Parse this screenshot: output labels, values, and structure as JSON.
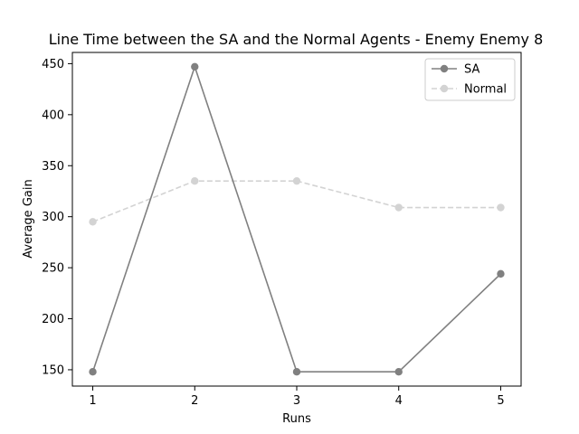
{
  "chart_data": {
    "type": "line",
    "title": "Line Time between the SA and the Normal Agents - Enemy Enemy 8",
    "xlabel": "Runs",
    "ylabel": "Average Gain",
    "x": [
      1,
      2,
      3,
      4,
      5
    ],
    "xticks": [
      "1",
      "2",
      "3",
      "4",
      "5"
    ],
    "yticks": [
      "150",
      "200",
      "250",
      "300",
      "350",
      "400",
      "450"
    ],
    "ylim": [
      134,
      461
    ],
    "xlim": [
      0.8,
      5.2
    ],
    "grid": false,
    "legend_position": "top-right",
    "series": [
      {
        "name": "SA",
        "values": [
          148,
          447,
          148,
          148,
          244
        ],
        "color": "#808080",
        "style": "solid",
        "marker": "circle"
      },
      {
        "name": "Normal",
        "values": [
          295,
          335,
          335,
          309,
          309
        ],
        "color": "#d3d3d3",
        "style": "dashed",
        "marker": "circle"
      }
    ]
  }
}
